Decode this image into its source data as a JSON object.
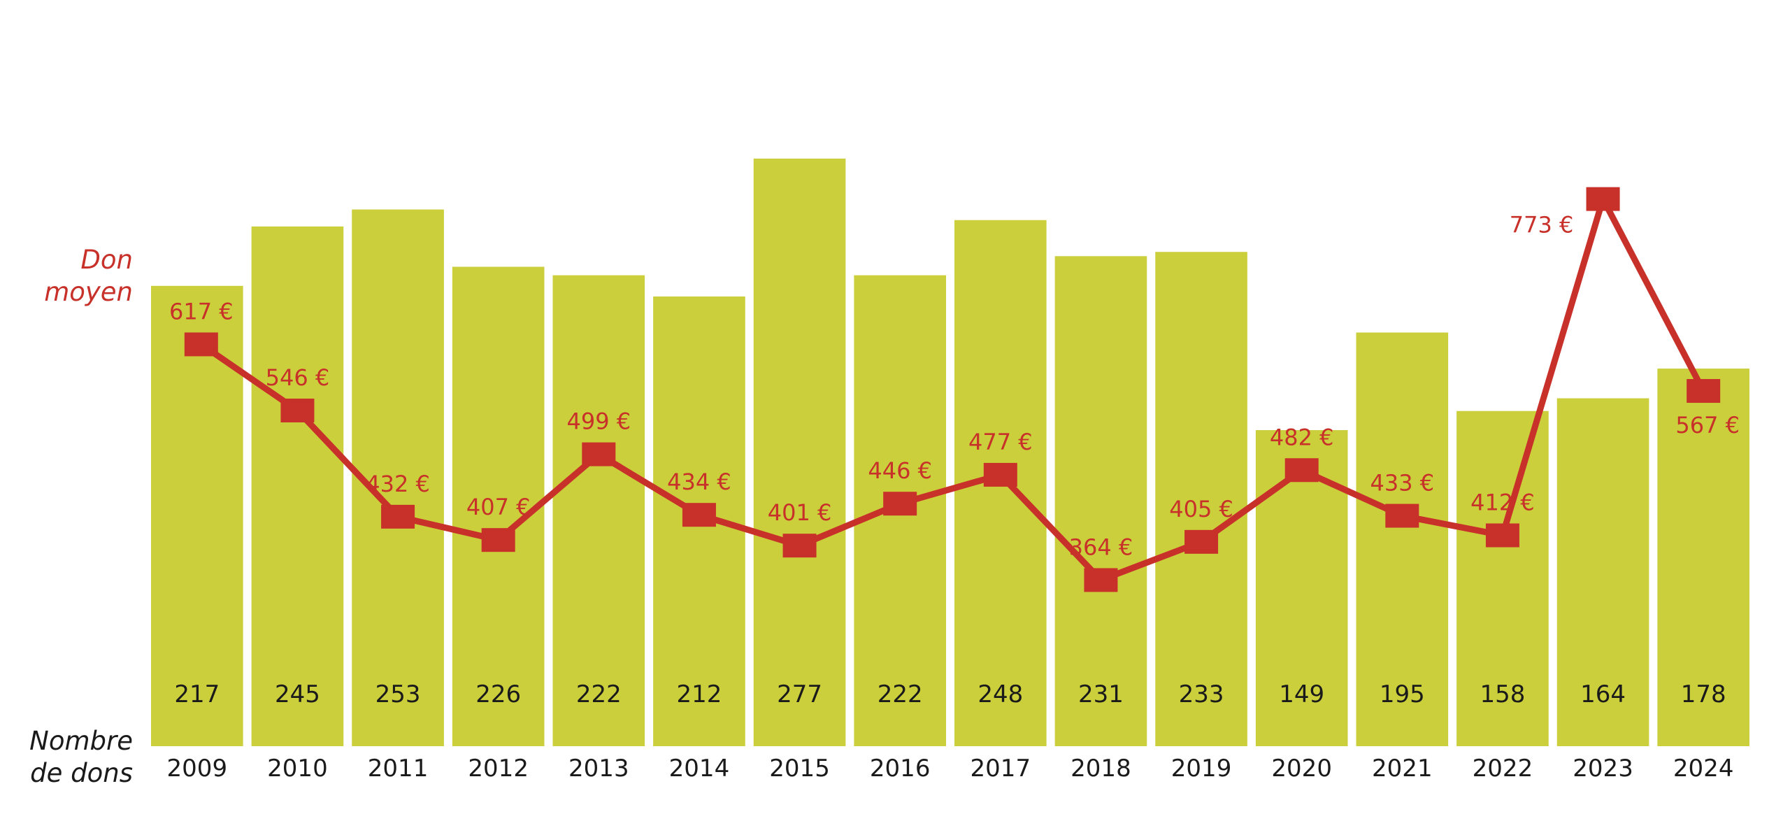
{
  "chart_data": {
    "type": "bar+line",
    "title": "",
    "categories": [
      "2009",
      "2010",
      "2011",
      "2012",
      "2013",
      "2014",
      "2015",
      "2016",
      "2017",
      "2018",
      "2019",
      "2020",
      "2021",
      "2022",
      "2023",
      "2024"
    ],
    "series": [
      {
        "name": "Nombre de dons",
        "kind": "bar",
        "values": [
          217,
          245,
          253,
          226,
          222,
          212,
          277,
          222,
          248,
          231,
          233,
          149,
          195,
          158,
          164,
          178
        ],
        "label_format": "{v}"
      },
      {
        "name": "Don moyen",
        "kind": "line",
        "marker": "square",
        "values": [
          617,
          546,
          432,
          407,
          499,
          434,
          401,
          446,
          477,
          364,
          405,
          482,
          433,
          412,
          773,
          567
        ],
        "unit": "€",
        "label_format": "{v} €",
        "label_position": [
          "above",
          "above",
          "above",
          "above",
          "above",
          "above",
          "above",
          "above",
          "above",
          "above",
          "above",
          "above",
          "above",
          "above",
          "left",
          "below"
        ]
      }
    ],
    "bar_height_values": [
      217,
      245,
      253,
      226,
      222,
      212,
      277,
      222,
      248,
      231,
      233,
      149,
      195,
      158,
      164,
      178
    ],
    "bar_ylim": [
      0,
      300
    ],
    "line_ylim": [
      260,
      820
    ],
    "axis_titles": {
      "line_series": [
        "Don",
        "moyen"
      ],
      "bar_series": [
        "Nombre",
        "de dons"
      ]
    },
    "colors": {
      "bar": "#cbcf3c",
      "line": "#c8302a",
      "text": "#1a1a1a",
      "background": "#ffffff"
    },
    "grid": false
  }
}
